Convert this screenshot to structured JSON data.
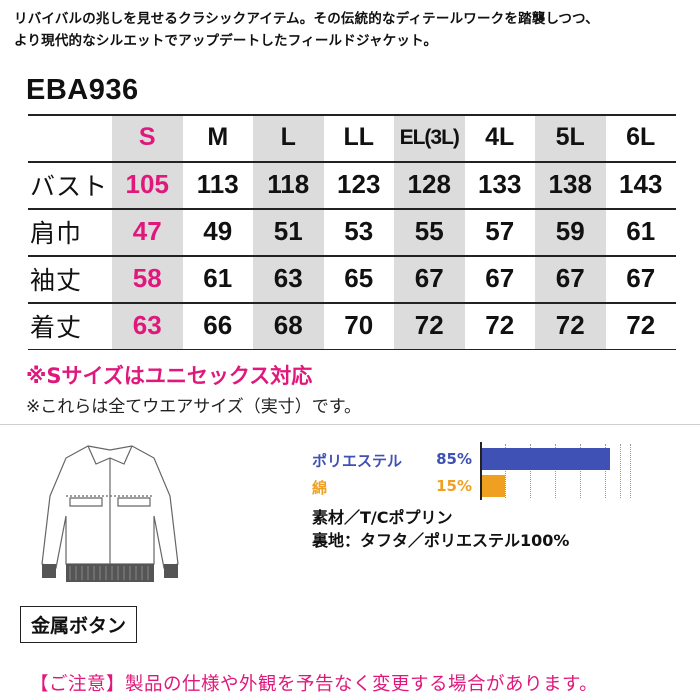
{
  "intro": {
    "line1": "リバイバルの兆しを見せるクラシックアイテム。その伝統的なディテールワークを踏襲しつつ、",
    "line2": "より現代的なシルエットでアップデートしたフィールドジャケット。"
  },
  "model": "EBA936",
  "size_table": {
    "sizes": [
      "S",
      "M",
      "L",
      "LL",
      "EL(3L)",
      "4L",
      "5L",
      "6L"
    ],
    "rows": [
      {
        "label": "バスト",
        "values": [
          "105",
          "113",
          "118",
          "123",
          "128",
          "133",
          "138",
          "143"
        ]
      },
      {
        "label": "肩巾",
        "values": [
          "47",
          "49",
          "51",
          "53",
          "55",
          "57",
          "59",
          "61"
        ]
      },
      {
        "label": "袖丈",
        "values": [
          "58",
          "61",
          "63",
          "65",
          "67",
          "67",
          "67",
          "67"
        ]
      },
      {
        "label": "着丈",
        "values": [
          "63",
          "66",
          "68",
          "70",
          "72",
          "72",
          "72",
          "72"
        ]
      }
    ]
  },
  "notes": {
    "unisex": "※Sサイズはユニセックス対応",
    "actual": "※これらは全てウエアサイズ（実寸）です。"
  },
  "fabric": {
    "poly_label": "ポリエステル",
    "poly_pct_text": "85%",
    "poly_value": 85,
    "cotton_label": "綿",
    "cotton_pct_text": "15%",
    "cotton_value": 15,
    "poly_color": "#3f51b5",
    "cotton_color": "#f0a020"
  },
  "material": {
    "line1": "素材／T/Cポプリン",
    "line2": "裏地：タフタ／ポリエステル100%"
  },
  "button_label": "金属ボタン",
  "caution": "【ご注意】製品の仕様や外観を予告なく変更する場合があります。",
  "colors": {
    "accent_pink": "#e0187c",
    "grey_column": "#dcdcdc"
  },
  "icons": {
    "jacket": "jacket-line-drawing"
  }
}
